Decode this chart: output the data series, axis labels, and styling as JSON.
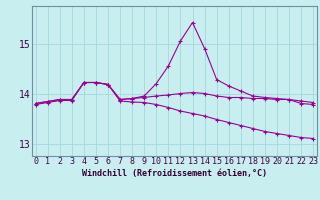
{
  "xlabel": "Windchill (Refroidissement éolien,°C)",
  "background_color": "#c8eef0",
  "grid_color": "#a0d8dc",
  "line_color": "#990099",
  "x_hours": [
    0,
    1,
    2,
    3,
    4,
    5,
    6,
    7,
    8,
    9,
    10,
    11,
    12,
    13,
    14,
    15,
    16,
    17,
    18,
    19,
    20,
    21,
    22,
    23
  ],
  "line_flat_y": [
    13.8,
    13.84,
    13.88,
    13.88,
    14.22,
    14.22,
    14.18,
    13.88,
    13.9,
    13.92,
    13.95,
    13.97,
    14.0,
    14.02,
    14.0,
    13.95,
    13.92,
    13.92,
    13.9,
    13.9,
    13.88,
    13.88,
    13.85,
    13.82
  ],
  "line_peak_y": [
    13.8,
    13.84,
    13.88,
    13.88,
    14.22,
    14.22,
    14.18,
    13.88,
    13.9,
    13.95,
    14.2,
    14.55,
    15.05,
    15.42,
    14.9,
    14.28,
    14.15,
    14.05,
    13.95,
    13.92,
    13.9,
    13.88,
    13.8,
    13.78
  ],
  "line_decline_y": [
    13.78,
    13.82,
    13.86,
    13.86,
    14.22,
    14.22,
    14.18,
    13.85,
    13.83,
    13.82,
    13.78,
    13.72,
    13.65,
    13.6,
    13.55,
    13.48,
    13.42,
    13.36,
    13.3,
    13.24,
    13.2,
    13.16,
    13.12,
    13.1
  ],
  "ylim": [
    12.75,
    15.75
  ],
  "yticks": [
    13,
    14,
    15
  ],
  "ytick_labels": [
    "13",
    "14",
    "15"
  ],
  "xlabel_fontsize": 6,
  "tick_fontsize": 6,
  "spine_color": "#7090a0"
}
